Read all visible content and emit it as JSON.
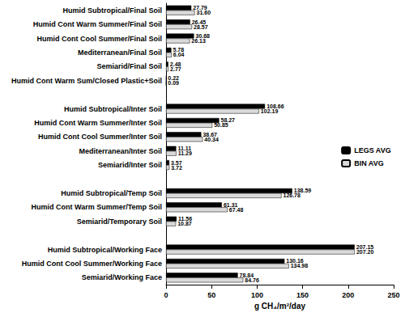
{
  "chart_data": {
    "type": "bar",
    "orientation": "horizontal",
    "x_label": "g CH₄/m²/day",
    "categories": [
      "Humid Subtropical/Final Soil",
      "Humid Cont Warm Summer/Final Soil",
      "Humid Cont Cool Summer/Final Soil",
      "Mediterranean/Final Soil",
      "Semiarid/Final Soil",
      "Humid Cont Warm Sum/Closed Plastic+Soil",
      null,
      "Humid Subtropical/Inter Soil",
      "Humid Cont Warm Summer/Inter Soil",
      "Humid Cont Cool Summer/Inter Soil",
      "Mediterranean/Inter Soil",
      "Semiarid/Inter Soil",
      null,
      "Humid Subtropical/Temp Soil",
      "Humid Cont Warm Summer/Temp Soil",
      "Semiarid/Temporary Soil",
      null,
      "Humid Subtropical/Working Face",
      "Humid Cont Cool Summer/Working Face",
      "Semiarid/Working Face"
    ],
    "series": [
      {
        "name": "LEGS AVG",
        "color": "#000000",
        "values": [
          27.79,
          26.45,
          30.68,
          5.78,
          2.48,
          0.22,
          null,
          108.66,
          58.27,
          38.67,
          11.11,
          3.57,
          null,
          138.59,
          61.31,
          11.56,
          null,
          207.15,
          130.16,
          78.84
        ],
        "value_labels": [
          "27.79",
          "26.45",
          "30.68",
          "5.78",
          "2.48",
          "0.22",
          null,
          "108.66",
          "58.27",
          "38.67",
          "11.11",
          "3.57",
          null,
          "138.59",
          "61.31",
          "11.56",
          null,
          "207.15",
          "130.16",
          "78.84"
        ]
      },
      {
        "name": "BIN AVG",
        "color": "#d9d9d9",
        "values": [
          31.6,
          28.57,
          26.13,
          6.04,
          2.77,
          0.09,
          null,
          102.19,
          50.85,
          40.34,
          11.29,
          3.72,
          null,
          126.78,
          67.48,
          10.87,
          null,
          207.2,
          134.98,
          84.76
        ],
        "value_labels": [
          "31.60",
          "28.57",
          "26.13",
          "6.04",
          "2.77",
          "0.09",
          null,
          "102.19",
          "50.85",
          "40.34",
          "11.29",
          "3.72",
          null,
          "126.78",
          "67.48",
          "10.87",
          null,
          "207.20",
          "134.98",
          "84.76"
        ]
      }
    ],
    "xlim": [
      0,
      250
    ],
    "xticks": [
      0,
      50,
      100,
      150,
      200,
      250
    ],
    "grid": false,
    "legend": "right",
    "data_labels": true
  }
}
